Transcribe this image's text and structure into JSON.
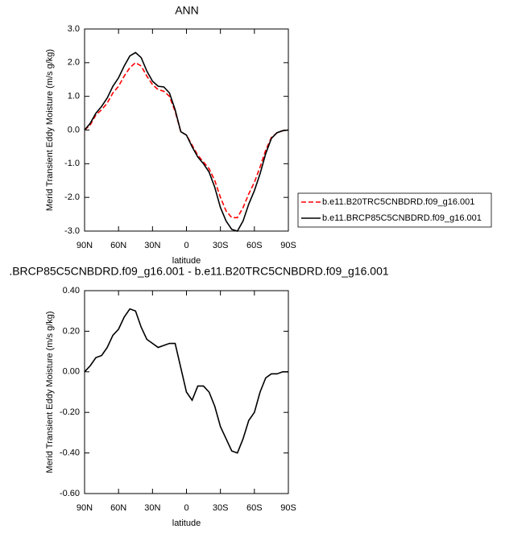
{
  "chart_data": [
    {
      "type": "line",
      "title": "ANN",
      "x_label": "latitude",
      "y_label": "Merid Transient Eddy Moisture (m/s g/kg)",
      "x": [
        90,
        85,
        80,
        75,
        70,
        65,
        60,
        55,
        50,
        45,
        40,
        35,
        30,
        25,
        20,
        15,
        10,
        5,
        0,
        -5,
        -10,
        -15,
        -20,
        -25,
        -30,
        -35,
        -40,
        -45,
        -50,
        -55,
        -60,
        -65,
        -70,
        -75,
        -80,
        -85,
        -90
      ],
      "xlim": [
        90,
        -90
      ],
      "xticks": [
        {
          "value": 90,
          "label": "90N"
        },
        {
          "value": 60,
          "label": "60N"
        },
        {
          "value": 30,
          "label": "30N"
        },
        0,
        {
          "value": -30,
          "label": "30S"
        },
        {
          "value": -60,
          "label": "60S"
        },
        {
          "value": -90,
          "label": "90S"
        }
      ],
      "ylim": [
        -3,
        3
      ],
      "yticks": [
        {
          "value": 3,
          "label": "3.0"
        },
        {
          "value": 2,
          "label": "2.0"
        },
        {
          "value": 1,
          "label": "1.0"
        },
        {
          "value": 0,
          "label": "0.0"
        },
        {
          "value": -1,
          "label": "-1.0"
        },
        {
          "value": -2,
          "label": "-2.0"
        },
        {
          "value": -3,
          "label": "-3.0"
        }
      ],
      "legend": "right",
      "series": [
        {
          "name": "b.e11.B20TRC5CNBDRD.f09_g16.001",
          "color": "#ff0000",
          "style": "dashed",
          "values": [
            0,
            0.15,
            0.45,
            0.6,
            0.8,
            1.1,
            1.3,
            1.6,
            1.85,
            2.0,
            1.9,
            1.6,
            1.35,
            1.2,
            1.15,
            1.0,
            0.55,
            -0.05,
            -0.15,
            -0.45,
            -0.75,
            -0.95,
            -1.15,
            -1.5,
            -2.0,
            -2.4,
            -2.6,
            -2.6,
            -2.3,
            -1.9,
            -1.55,
            -1.1,
            -0.6,
            -0.22,
            -0.08,
            -0.02,
            0
          ]
        },
        {
          "name": "b.e11.BRCP85C5CNBDRD.f09_g16.001",
          "color": "#000000",
          "style": "solid",
          "values": [
            0,
            0.2,
            0.5,
            0.7,
            0.95,
            1.3,
            1.55,
            1.9,
            2.2,
            2.3,
            2.15,
            1.75,
            1.45,
            1.3,
            1.28,
            1.1,
            0.6,
            -0.05,
            -0.15,
            -0.5,
            -0.8,
            -1.0,
            -1.25,
            -1.7,
            -2.3,
            -2.7,
            -2.95,
            -3.0,
            -2.7,
            -2.2,
            -1.8,
            -1.3,
            -0.7,
            -0.25,
            -0.08,
            -0.02,
            0
          ]
        }
      ]
    },
    {
      "type": "line",
      "title": ".BRCP85C5CNBDRD.f09_g16.001 - b.e11.B20TRC5CNBDRD.f09_g16.001",
      "x_label": "latitude",
      "y_label": "Merid Transient Eddy Moisture (m/s g/kg)",
      "x": [
        90,
        85,
        80,
        75,
        70,
        65,
        60,
        55,
        50,
        45,
        40,
        35,
        30,
        25,
        20,
        15,
        10,
        5,
        0,
        -5,
        -10,
        -15,
        -20,
        -25,
        -30,
        -35,
        -40,
        -45,
        -50,
        -55,
        -60,
        -65,
        -70,
        -75,
        -80,
        -85,
        -90
      ],
      "xlim": [
        90,
        -90
      ],
      "xticks": [
        {
          "value": 90,
          "label": "90N"
        },
        {
          "value": 60,
          "label": "60N"
        },
        {
          "value": 30,
          "label": "30N"
        },
        0,
        {
          "value": -30,
          "label": "30S"
        },
        {
          "value": -60,
          "label": "60S"
        },
        {
          "value": -90,
          "label": "90S"
        }
      ],
      "ylim": [
        -0.6,
        0.4
      ],
      "yticks": [
        {
          "value": 0.4,
          "label": "0.40"
        },
        {
          "value": 0.2,
          "label": "0.20"
        },
        {
          "value": 0,
          "label": "0.00"
        },
        {
          "value": -0.2,
          "label": "-0.20"
        },
        {
          "value": -0.4,
          "label": "-0.40"
        },
        {
          "value": -0.6,
          "label": "-0.60"
        }
      ],
      "series": [
        {
          "color": "#000000",
          "style": "solid",
          "values": [
            0,
            0.03,
            0.07,
            0.08,
            0.12,
            0.18,
            0.21,
            0.27,
            0.31,
            0.3,
            0.22,
            0.16,
            0.14,
            0.12,
            0.13,
            0.14,
            0.14,
            0.02,
            -0.1,
            -0.14,
            -0.07,
            -0.07,
            -0.1,
            -0.17,
            -0.27,
            -0.33,
            -0.39,
            -0.4,
            -0.33,
            -0.24,
            -0.2,
            -0.1,
            -0.03,
            -0.01,
            -0.01,
            0,
            0
          ]
        }
      ]
    }
  ]
}
